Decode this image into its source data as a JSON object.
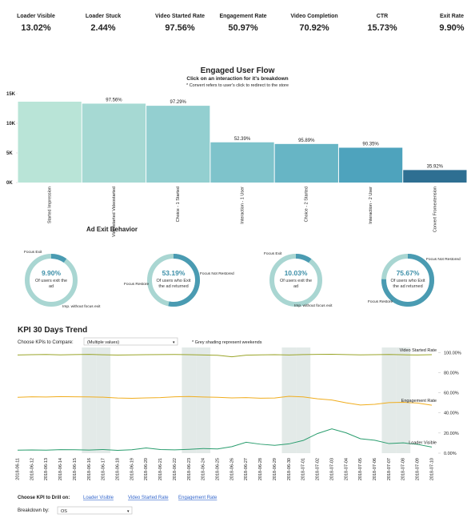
{
  "kpis": [
    {
      "label": "Loader Visible",
      "value": "13.02%"
    },
    {
      "label": "Loader Stuck",
      "value": "2.44%"
    },
    {
      "label": "Video Started Rate",
      "value": "97.56%"
    },
    {
      "label": "Engagement Rate",
      "value": "50.97%"
    },
    {
      "label": "Video Completion",
      "value": "70.92%"
    },
    {
      "label": "CTR",
      "value": "15.73%"
    },
    {
      "label": "Exit Rate",
      "value": "9.90%"
    }
  ],
  "chart_data": [
    {
      "type": "bar",
      "title": "Engaged User Flow",
      "subtitle": "Click on an interaction for it's breakdown",
      "note": "* Convert refers to user's click to redirect to the store",
      "categories": [
        "Started Impression",
        "Videostarted Videostarted",
        "Choice - 1 Started",
        "Interaction - 1 User",
        "Choice - 2 Started",
        "Interaction - 2 User",
        "Convert Fromextension"
      ],
      "values": [
        13650,
        13320,
        12960,
        6790,
        6510,
        5880,
        2110
      ],
      "annotations": [
        null,
        "97.56%",
        "97.29%",
        "52.39%",
        "95.89%",
        "90.35%",
        "35.92%"
      ],
      "colors": [
        "#b9e4d7",
        "#a6d9d3",
        "#93cfd0",
        "#7ec3cb",
        "#67b5c5",
        "#4ea3bd",
        "#2e6f92"
      ],
      "ylim": [
        0,
        15000
      ],
      "yticks": [
        {
          "value": 0,
          "label": "0K"
        },
        {
          "value": 5000,
          "label": "5K"
        },
        {
          "value": 10000,
          "label": "10K"
        },
        {
          "value": 15000,
          "label": "15K"
        }
      ]
    },
    {
      "type": "line",
      "title": "KPI 30 Days Trend",
      "compare_label": "Choose KPIs to Compare:",
      "compare_value": "(Multiple values)",
      "note": "* Grey shading represent weekends",
      "categories": [
        "2018-06-11",
        "2018-06-12",
        "2018-06-13",
        "2018-06-14",
        "2018-06-15",
        "2018-06-16",
        "2018-06-17",
        "2018-06-18",
        "2018-06-19",
        "2018-06-20",
        "2018-06-21",
        "2018-06-22",
        "2018-06-23",
        "2018-06-24",
        "2018-06-25",
        "2018-06-26",
        "2018-06-27",
        "2018-06-28",
        "2018-06-29",
        "2018-06-30",
        "2018-07-01",
        "2018-07-02",
        "2018-07-03",
        "2018-07-04",
        "2018-07-05",
        "2018-07-06",
        "2018-07-07",
        "2018-07-08",
        "2018-07-09",
        "2018-07-10"
      ],
      "shaded": [
        "2018-06-16",
        "2018-06-17",
        "2018-06-23",
        "2018-06-24",
        "2018-06-30",
        "2018-07-01",
        "2018-07-07",
        "2018-07-08"
      ],
      "series": [
        {
          "name": "Video Started Rate",
          "color": "#9aa52a",
          "values": [
            97.5,
            97.8,
            98,
            97.6,
            97.9,
            98.1,
            97.7,
            97.4,
            97.6,
            97.8,
            97.9,
            98,
            97.8,
            97.5,
            97.2,
            95.8,
            97.3,
            97.6,
            97.8,
            97.5,
            97.9,
            98.1,
            98.2,
            97.9,
            97.6,
            97.8,
            98,
            97.7,
            97.5,
            97.8
          ]
        },
        {
          "name": "Engagement Rate",
          "color": "#f0ad1e",
          "values": [
            55.5,
            56,
            55.8,
            56.2,
            56,
            55.9,
            55.6,
            54.8,
            54.5,
            54.9,
            55.2,
            56,
            56.3,
            55.8,
            55.5,
            54.9,
            55.2,
            54.6,
            54.8,
            56.5,
            55.9,
            54,
            52.8,
            50,
            47.8,
            48.5,
            50.2,
            50.5,
            49.8,
            47.6
          ]
        },
        {
          "name": "Loader Visible",
          "color": "#2a9d6e",
          "values": [
            3,
            3.2,
            3,
            3.5,
            3.4,
            3.1,
            3.6,
            2.8,
            3.4,
            5.2,
            3.6,
            3.3,
            3.8,
            4.6,
            4.2,
            6.5,
            10.8,
            8.9,
            7.8,
            9.2,
            12.6,
            19.5,
            24.1,
            20.2,
            14.3,
            12.8,
            9.5,
            10.2,
            8.7,
            6.1
          ]
        }
      ],
      "ylim": [
        0,
        105
      ],
      "yticks": [
        {
          "value": 0,
          "label": "0.00%"
        },
        {
          "value": 20,
          "label": "20.00%"
        },
        {
          "value": 40,
          "label": "40.00%"
        },
        {
          "value": 60,
          "label": "60.00%"
        },
        {
          "value": 80,
          "label": "80.00%"
        },
        {
          "value": 100,
          "label": "100.00%"
        }
      ]
    }
  ],
  "ad_exit": {
    "title": "Ad Exit Behavior",
    "donuts": [
      {
        "value": 9.9,
        "value_label": "9.90%",
        "text": "Of users exit the ad",
        "arc_label": "Focus Exit",
        "rest_label": "Imp. without focus exit"
      },
      {
        "value": 53.19,
        "value_label": "53.19%",
        "text": "Of users who Exit the ad returned",
        "arc_label": "Focus Not Restored",
        "rest_label": "Focus Restore"
      },
      {
        "value": 10.03,
        "value_label": "10.03%",
        "text": "Of users exit the ad",
        "arc_label": "Focus Exit",
        "rest_label": "Imp. without focus exit"
      },
      {
        "value": 75.67,
        "value_label": "75.67%",
        "text": "Of users who Exit the ad returned",
        "arc_label": "Focus Not Restored",
        "rest_label": "Focus Restore"
      }
    ]
  },
  "controls": {
    "drill_label": "Choose KPI to Drill on:",
    "drill_links": [
      "Loader Visible",
      "Video Started Rate",
      "Engagement Rate"
    ],
    "breakdown_label": "Breakdown by:",
    "breakdown_value": "OS"
  }
}
